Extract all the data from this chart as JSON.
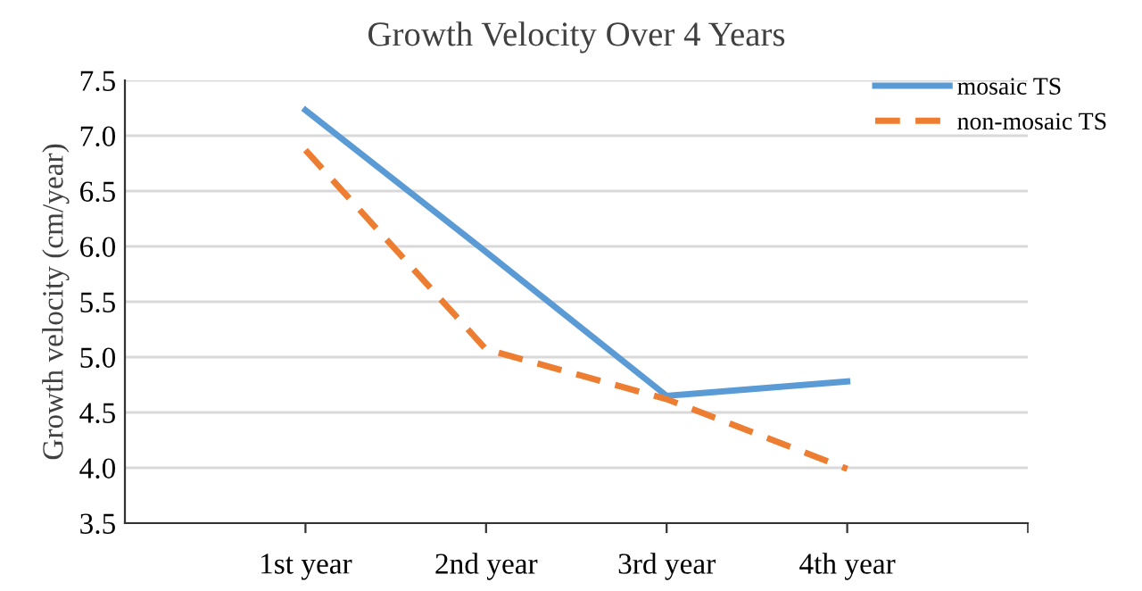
{
  "chart_data": {
    "type": "line",
    "title": "Growth Velocity Over 4 Years",
    "ylabel": "Growth velocity (cm/year)",
    "categories": [
      "1st year",
      "2nd year",
      "3rd year",
      "4th year"
    ],
    "series": [
      {
        "name": "mosaic TS",
        "color": "#5b9bd5",
        "line_style": "solid",
        "values": [
          7.23,
          5.95,
          4.65,
          4.78
        ]
      },
      {
        "name": "non-mosaic TS",
        "color": "#ed7d31",
        "line_style": "dashed",
        "values": [
          6.87,
          5.07,
          4.62,
          3.99
        ]
      }
    ],
    "ylim": [
      3.5,
      7.5
    ],
    "yticks": [
      3.5,
      {
        "value": 4,
        "label": "4.0"
      },
      4.5,
      {
        "value": 5,
        "label": "5.0"
      },
      5.5,
      {
        "value": 6,
        "label": "6.0"
      },
      6.5,
      {
        "value": 7,
        "label": "7.0"
      },
      7.5
    ],
    "grid": "y",
    "legend": "top right",
    "marker": "none"
  }
}
